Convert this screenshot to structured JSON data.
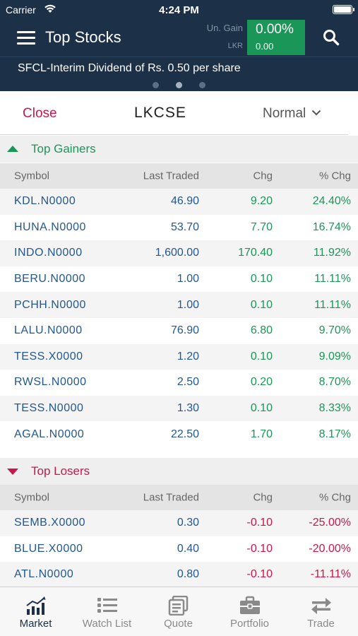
{
  "status_bar": {
    "carrier": "Carrier",
    "time": "4:24 PM"
  },
  "header": {
    "title": "Top Stocks",
    "gain_label": "Un. Gain",
    "currency": "LKR",
    "gain_percent": "0.00%",
    "gain_amount": "0.00"
  },
  "ticker": {
    "message": "SFCL-Interim Dividend of Rs. 0.50 per share",
    "page_count": 3,
    "active_page": 2
  },
  "controls": {
    "close_label": "Close",
    "exchange": "LKCSE",
    "mode": "Normal"
  },
  "columns": {
    "symbol": "Symbol",
    "last_traded": "Last Traded",
    "chg": "Chg",
    "pct_chg": "% Chg"
  },
  "gainers": {
    "title": "Top Gainers",
    "rows": [
      {
        "symbol": "KDL.N0000",
        "last": "46.90",
        "chg": "9.20",
        "pct": "24.40%"
      },
      {
        "symbol": "HUNA.N0000",
        "last": "53.70",
        "chg": "7.70",
        "pct": "16.74%"
      },
      {
        "symbol": "INDO.N0000",
        "last": "1,600.00",
        "chg": "170.40",
        "pct": "11.92%"
      },
      {
        "symbol": "BERU.N0000",
        "last": "1.00",
        "chg": "0.10",
        "pct": "11.11%"
      },
      {
        "symbol": "PCHH.N0000",
        "last": "1.00",
        "chg": "0.10",
        "pct": "11.11%"
      },
      {
        "symbol": "LALU.N0000",
        "last": "76.90",
        "chg": "6.80",
        "pct": "9.70%"
      },
      {
        "symbol": "TESS.X0000",
        "last": "1.20",
        "chg": "0.10",
        "pct": "9.09%"
      },
      {
        "symbol": "RWSL.N0000",
        "last": "2.50",
        "chg": "0.20",
        "pct": "8.70%"
      },
      {
        "symbol": "TESS.N0000",
        "last": "1.30",
        "chg": "0.10",
        "pct": "8.33%"
      },
      {
        "symbol": "AGAL.N0000",
        "last": "22.50",
        "chg": "1.70",
        "pct": "8.17%"
      }
    ]
  },
  "losers": {
    "title": "Top Losers",
    "rows": [
      {
        "symbol": "SEMB.X0000",
        "last": "0.30",
        "chg": "-0.10",
        "pct": "-25.00%"
      },
      {
        "symbol": "BLUE.X0000",
        "last": "0.40",
        "chg": "-0.10",
        "pct": "-20.00%"
      },
      {
        "symbol": "ATL.N0000",
        "last": "0.80",
        "chg": "-0.10",
        "pct": "-11.11%"
      }
    ]
  },
  "nav": {
    "items": [
      {
        "label": "Market",
        "icon": "market-chart-icon",
        "active": true
      },
      {
        "label": "Watch List",
        "icon": "watchlist-icon",
        "active": false
      },
      {
        "label": "Quote",
        "icon": "quote-icon",
        "active": false
      },
      {
        "label": "Portfolio",
        "icon": "briefcase-icon",
        "active": false
      },
      {
        "label": "Trade",
        "icon": "trade-arrows-icon",
        "active": false
      }
    ]
  },
  "colors": {
    "header_bg": "#1c3048",
    "gain_green": "#1a9658",
    "loss_red": "#c8174c",
    "symbol_blue": "#24578c"
  }
}
